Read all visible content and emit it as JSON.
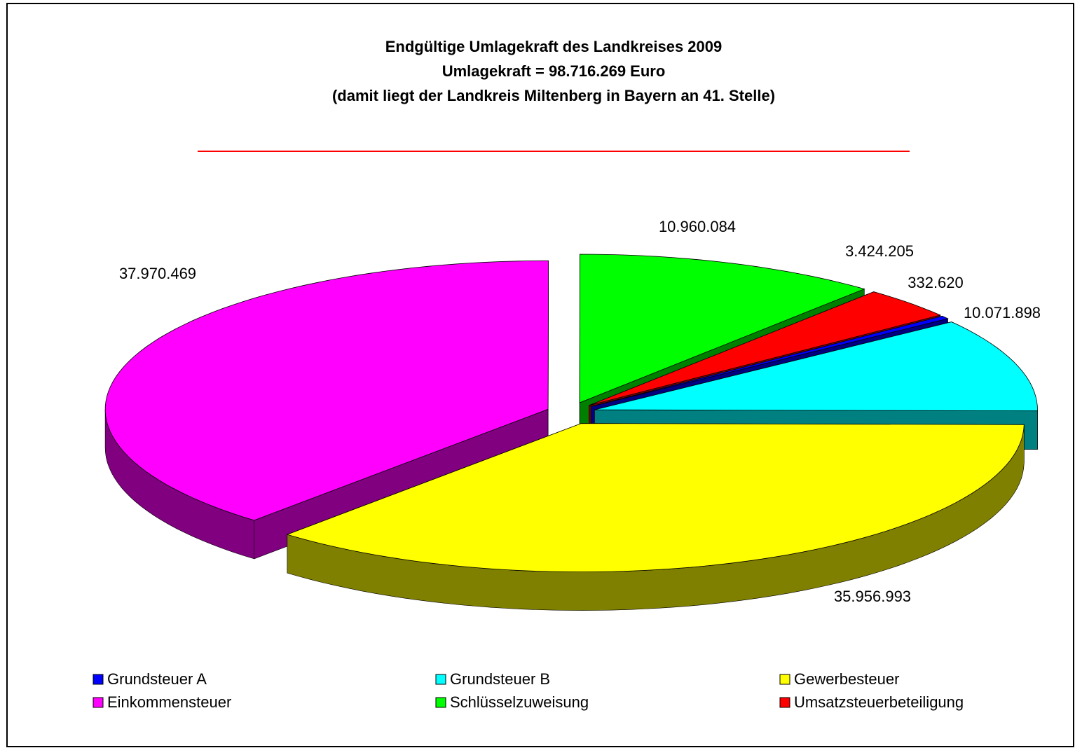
{
  "chart_data": {
    "type": "pie",
    "title": [
      "Endgültige Umlagekraft des Landkreises 2009",
      "Umlagekraft   = 98.716.269 Euro",
      "(damit liegt der Landkreis Miltenberg in Bayern an 41. Stelle)"
    ],
    "categories": [
      "Grundsteuer A",
      "Grundsteuer B",
      "Gewerbesteuer",
      "Einkommensteuer",
      "Schlüsselzuweisung",
      "Umsatzsteuerbeteiligung"
    ],
    "values": [
      332620,
      10071898,
      35956993,
      37970469,
      10960084,
      3424205
    ],
    "value_labels": [
      "332.620",
      "10.071.898",
      "35.956.993",
      "37.970.469",
      "10.960.084",
      "3.424.205"
    ],
    "colors": [
      "#0000ff",
      "#00ffff",
      "#ffff00",
      "#ff00ff",
      "#00ff00",
      "#ff0000"
    ],
    "legend": "bottom"
  }
}
